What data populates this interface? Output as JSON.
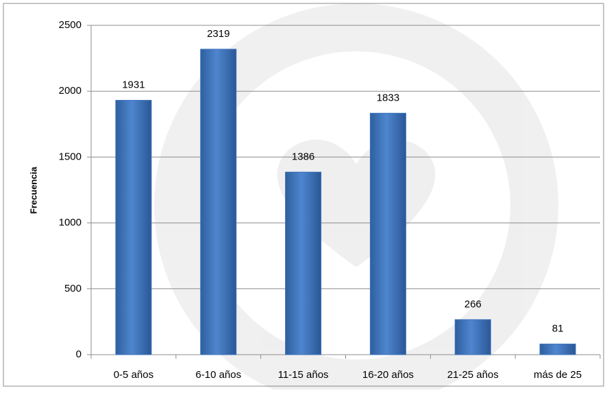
{
  "chart_data": {
    "type": "bar",
    "y_label": "Frecuencia",
    "categories": [
      "0-5 años",
      "6-10 años",
      "11-15 años",
      "16-20 años",
      "21-25 años",
      "más de 25"
    ],
    "values": [
      1931,
      2319,
      1386,
      1833,
      266,
      81
    ],
    "color": "#3f74bd",
    "ylim": [
      0,
      2500
    ],
    "yticks": [
      0,
      500,
      1000,
      1500,
      2000,
      2500
    ],
    "grid": true
  }
}
